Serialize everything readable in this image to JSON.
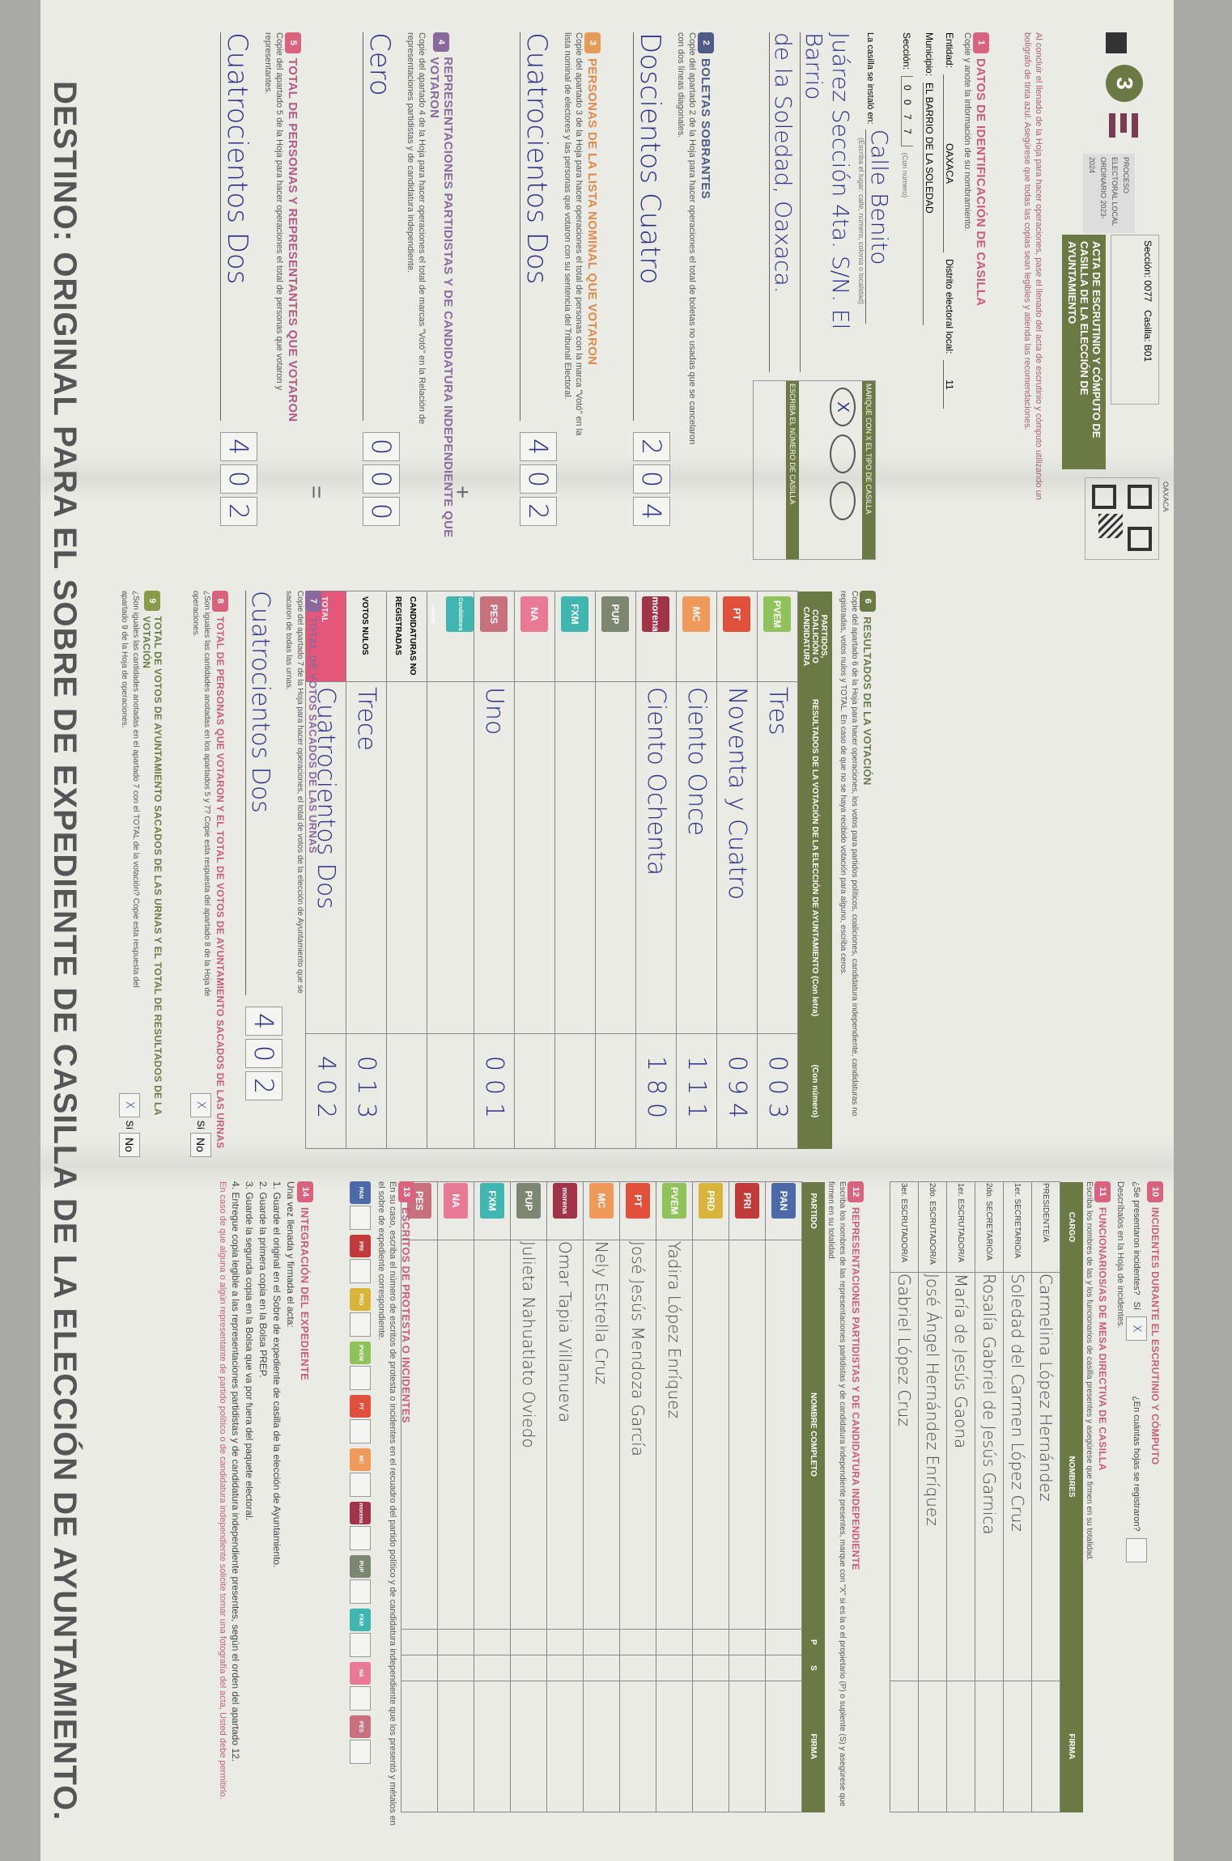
{
  "header": {
    "section_number": "3",
    "seccion_label": "Sección:",
    "seccion": "0077",
    "casilla_label": "Casilla:",
    "casilla": "B01",
    "process": "PROCESO ELECTORAL LOCAL ORDINARIO 2023-2024",
    "title": "ACTA DE ESCRUTINIO Y CÓMPUTO DE CASILLA DE LA ELECCIÓN DE AYUNTAMIENTO",
    "state": "OAXACA",
    "instructions": "Al concluir el llenado de la Hoja para hacer operaciones, pase el llenado del acta de escrutinio y cómputo utilizando un bolígrafo de tinta azul. Asegúrese que todas las copias sean legibles y atienda las recomendaciones."
  },
  "item1": {
    "title": "DATOS DE IDENTIFICACIÓN DE CASILLA",
    "instruction": "Copie y anote la información de su nombramiento.",
    "entidad_label": "Entidad:",
    "entidad": "OAXACA",
    "distrito_label": "Distrito electoral local:",
    "distrito": "11",
    "municipio_label": "Municipio:",
    "municipio": "EL BARRIO DE LA SOLEDAD",
    "seccion_label": "Sección:",
    "seccion": "0 0 7 7",
    "con_numero": "(Con número)",
    "ubicacion_label": "La casilla se instaló en:",
    "ubicacion_hint": "(Escriba el lugar: calle, número, colonia o localidad)",
    "ubicacion": [
      "Calle Benito",
      "Juárez Sección 4ta. S/N. El Barrio",
      "de la Soledad, Oaxaca."
    ],
    "tipo_label": "MARQUE CON X EL TIPO DE CASILLA",
    "numero_label": "ESCRIBA EL NÚMERO DE CASILLA",
    "tipo_marked": "X"
  },
  "item2": {
    "title": "BOLETAS SOBRANTES",
    "desc": "Copie del apartado 2 de la Hoja para hacer operaciones el total de boletas no usadas que se cancelaron con dos líneas diagonales.",
    "letters": "Doscientos Cuatro",
    "digits": [
      "2",
      "0",
      "4"
    ]
  },
  "item3": {
    "title": "PERSONAS DE LA LISTA NOMINAL QUE VOTARON",
    "desc": "Copie del apartado 3 de la Hoja para hacer operaciones el total de personas con la marca \"Votó\" en la lista nominal de electores y las personas que votaron con su sentencia del Tribunal Electoral.",
    "letters": "Cuatrocientos Dos",
    "digits": [
      "4",
      "0",
      "2"
    ]
  },
  "item4": {
    "title": "REPRESENTACIONES PARTIDISTAS Y DE CANDIDATURA INDEPENDIENTE QUE VOTARON",
    "desc": "Copie del apartado 4 de la Hoja para hacer operaciones el total de marcas \"Votó\" en la Relación de representaciones partidistas y de candidatura independiente.",
    "letters": "Cero",
    "digits": [
      "0",
      "0",
      "0"
    ],
    "plus": "+"
  },
  "item5": {
    "title": "TOTAL DE PERSONAS Y REPRESENTANTES QUE VOTARON",
    "desc": "Copie del apartado 5 de la Hoja para hacer operaciones el total de personas que votaron y representantes.",
    "letters": "Cuatrocientos Dos",
    "digits": [
      "4",
      "0",
      "2"
    ],
    "equals": "="
  },
  "item6": {
    "title": "RESULTADOS DE LA VOTACIÓN",
    "desc": "Copie del apartado 6 de la Hoja para hacer operaciones, los votos para partidos políticos, coaliciones, candidatura independiente, candidaturas no registradas, votos nulos y TOTAL. En caso de que no se haya recibido votación para alguno, escriba ceros.",
    "col_party": "PARTIDOS, COALICIÓN O CANDIDATURA",
    "col_letters": "RESULTADOS DE LA VOTACIÓN DE LA ELECCIÓN DE AYUNTAMIENTO (Con letra)",
    "col_digits": "(Con número)",
    "rows": [
      {
        "party": "PVEM",
        "color": "#8fc25a",
        "letters": "Tres",
        "digits": "003"
      },
      {
        "party": "PT",
        "color": "#e0503a",
        "letters": "Noventa y Cuatro",
        "digits": "094"
      },
      {
        "party": "MC",
        "color": "#ef9a5a",
        "letters": "Ciento Once",
        "digits": "111"
      },
      {
        "party": "morena",
        "color": "#a2344a",
        "letters": "Ciento Ochenta",
        "digits": "180"
      },
      {
        "party": "PUP",
        "color": "#7c8670",
        "letters": "",
        "digits": ""
      },
      {
        "party": "FXM",
        "color": "#3fb6b0",
        "letters": "",
        "digits": ""
      },
      {
        "party": "NA",
        "color": "#e87a96",
        "letters": "",
        "digits": ""
      },
      {
        "party": "PES",
        "color": "#c8707d",
        "letters": "Uno",
        "digits": "001"
      },
      {
        "party": "Candidatura común",
        "color": "#3fb6b0",
        "letters": "",
        "digits": ""
      },
      {
        "party": "CANDIDATURAS NO REGISTRADAS",
        "color": "",
        "letters": "",
        "digits": ""
      },
      {
        "party": "VOTOS NULOS",
        "color": "",
        "letters": "Trece",
        "digits": "013"
      },
      {
        "party": "TOTAL",
        "color": "#e5577a",
        "letters": "Cuatrocientos Dos",
        "digits": "402"
      }
    ]
  },
  "item7": {
    "title": "TOTAL DE VOTOS SACADOS DE LAS URNAS",
    "desc": "Copie del apartado 7 de la Hoja para hacer operaciones, el total de votos de la elección de Ayuntamiento que se sacaron de todas las urnas.",
    "letters": "Cuatrocientos Dos",
    "digits": [
      "4",
      "0",
      "2"
    ]
  },
  "item8": {
    "title": "TOTAL DE PERSONAS QUE VOTARON Y EL TOTAL DE VOTOS DE AYUNTAMIENTO SACADOS DE LAS URNAS",
    "question": "¿Son iguales las cantidades anotadas en los apartados 5 y 7? Copie esta respuesta del apartado 8 de la Hoja de operaciones.",
    "si": "Sí",
    "no": "No",
    "answer_mark": "X"
  },
  "item9": {
    "title": "TOTAL DE VOTOS DE AYUNTAMIENTO SACADOS DE LAS URNAS Y EL TOTAL DE RESULTADOS DE LA VOTACIÓN",
    "question": "¿Son iguales las cantidades anotadas en el apartado 7 con el TOTAL de la votación? Copie esta respuesta del apartado 9 de la Hoja de operaciones.",
    "si": "Sí",
    "no": "No",
    "answer_mark": "X"
  },
  "item10": {
    "title": "INCIDENTES DURANTE EL ESCRUTINIO Y CÓMPUTO",
    "question": "¿Se presentaron incidentes?",
    "si": "Sí",
    "answer_mark": "X",
    "hojas_question": "¿En cuántas hojas se registraron?",
    "desc": "Descríbalos en la Hoja de incidentes."
  },
  "item11": {
    "title": "FUNCIONARIOS/AS DE MESA DIRECTIVA DE CASILLA",
    "desc": "Escriba los nombres de las y los funcionarios de casilla presentes y asegúrese que firmen en su totalidad.",
    "col_cargo": "CARGO",
    "col_nombre": "NOMBRES",
    "col_firma": "FIRMA",
    "rows": [
      {
        "cargo": "PRESIDENTE/A",
        "nombre": "Carmelina López Hernández"
      },
      {
        "cargo": "1er. SECRETARIO/A",
        "nombre": "Soledad del Carmen López Cruz"
      },
      {
        "cargo": "2do. SECRETARIO/A",
        "nombre": "Rosalía Gabriel de Jesús Garnica"
      },
      {
        "cargo": "1er. ESCRUTADOR/A",
        "nombre": "María de Jesús Gaona"
      },
      {
        "cargo": "2do. ESCRUTADOR/A",
        "nombre": "José Ángel Hernández Enríquez"
      },
      {
        "cargo": "3er. ESCRUTADOR/A",
        "nombre": "Gabriel López Cruz"
      }
    ]
  },
  "item12": {
    "title": "REPRESENTACIONES PARTIDISTAS Y DE CANDIDATURA INDEPENDIENTE",
    "desc": "Escriba los nombres de las representaciones partidistas y de candidatura independiente presentes, marque con \"X\" si es la o el propietario (P) o suplente (S) y asegúrese que firmen en su totalidad.",
    "col_partido": "PARTIDO",
    "col_nombre": "NOMBRE COMPLETO",
    "col_firma": "FIRMA",
    "rows": [
      {
        "party": "PAN",
        "color": "#4d6aa8",
        "nombre": ""
      },
      {
        "party": "PRI",
        "color": "#c23b3b",
        "nombre": ""
      },
      {
        "party": "PRD",
        "color": "#d9b43a",
        "nombre": ""
      },
      {
        "party": "PVEM",
        "color": "#8fc25a",
        "nombre": "Yadira López Enríquez"
      },
      {
        "party": "PT",
        "color": "#e0503a",
        "nombre": "José Jesús Mendoza García"
      },
      {
        "party": "MC",
        "color": "#ef9a5a",
        "nombre": "Nely Estrella Cruz"
      },
      {
        "party": "morena",
        "color": "#a2344a",
        "nombre": "Omar Tapia Villanueva"
      },
      {
        "party": "PUP",
        "color": "#7c8670",
        "nombre": "Julieta Nahuatlato Oviedo"
      },
      {
        "party": "FXM",
        "color": "#3fb6b0",
        "nombre": ""
      },
      {
        "party": "NA",
        "color": "#e87a96",
        "nombre": ""
      },
      {
        "party": "PES",
        "color": "#c8707d",
        "nombre": ""
      }
    ]
  },
  "item13": {
    "title": "ESCRITOS DE PROTESTA O INCIDENTES",
    "desc": "En su caso, escriba el número de escritos de protesta o incidentes en el recuadro del partido político y de candidatura independiente que los presentó y métalos en el sobre de expediente correspondiente."
  },
  "item14": {
    "title": "INTEGRACIÓN DEL EXPEDIENTE",
    "steps": [
      "Una vez llenada y firmada el acta:",
      "1. Guarde el original en el Sobre de expediente de casilla de la elección de Ayuntamiento.",
      "2. Guarde la primera copia en la Bolsa PREP.",
      "3. Guarde la segunda copia en la Bolsa que va por fuera del paquete electoral.",
      "4. Entregue copia legible a las representaciones partidistas y de candidatura independiente presentes, según el orden del apartado 12."
    ],
    "note": "En caso de que alguna o algún representante de partido político o de candidatura independiente solicite tomar una fotografía del acta, Usted debe permitirlo."
  },
  "footer": {
    "destino": "DESTINO: ORIGINAL PARA EL SOBRE DE EXPEDIENTE DE CASILLA DE LA ELECCIÓN DE AYUNTAMIENTO."
  },
  "colors": {
    "form_green": "#6b7a45",
    "accent_pink": "#d9637f",
    "ink_blue": "#2b2f86",
    "paper": "#ebebe6"
  }
}
